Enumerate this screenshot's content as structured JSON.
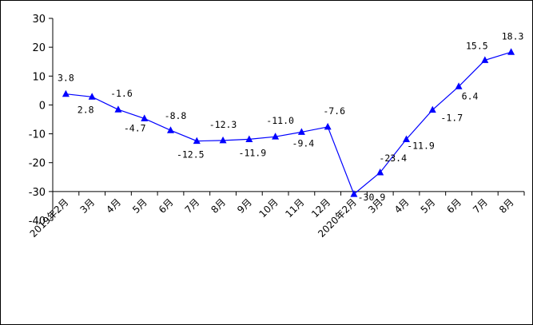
{
  "chart_data": {
    "type": "line",
    "title": "",
    "xlabel": "",
    "ylabel": "",
    "ylim": [
      -40,
      30
    ],
    "yticks": [
      30,
      20,
      10,
      0,
      -10,
      -20,
      -30,
      -40
    ],
    "grid": false,
    "legend": "none",
    "categories": [
      "2019年2月",
      "3月",
      "4月",
      "5月",
      "6月",
      "7月",
      "8月",
      "9月",
      "10月",
      "11月",
      "12月",
      "2020年2月",
      "3月",
      "4月",
      "5月",
      "6月",
      "7月",
      "8月"
    ],
    "series": [
      {
        "values": [
          3.8,
          2.8,
          -1.6,
          -4.7,
          -8.8,
          -12.5,
          -12.3,
          -11.9,
          -11.0,
          -9.4,
          -7.6,
          -30.9,
          -23.4,
          -11.9,
          -1.7,
          6.4,
          15.5,
          18.3
        ],
        "labels": [
          "3.8",
          "2.8",
          "-1.6",
          "-4.7",
          "-8.8",
          "-12.5",
          "-12.3",
          "-11.9",
          "-11.0",
          "-9.4",
          "-7.6",
          "-30.9",
          "-23.4",
          "-11.9",
          "-1.7",
          "6.4",
          "15.5",
          "18.3"
        ],
        "color": "#0000FF"
      }
    ],
    "axis_color": "#000000"
  }
}
